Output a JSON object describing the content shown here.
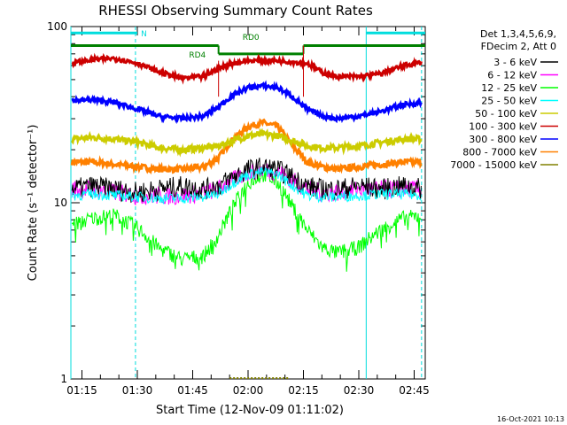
{
  "chart_data": {
    "type": "line",
    "title": "RHESSI Observing Summary Count Rates",
    "xlabel": "Start Time (12-Nov-09 01:11:02)",
    "ylabel": "Count Rate (s⁻¹ detector⁻¹)",
    "yscale": "log",
    "ylim": [
      1,
      100
    ],
    "xlim_minutes": [
      72,
      168
    ],
    "y_ticks": [
      "1",
      "10",
      "100"
    ],
    "x_ticks": [
      {
        "label": "01:15",
        "minute": 75
      },
      {
        "label": "01:30",
        "minute": 90
      },
      {
        "label": "01:45",
        "minute": 105
      },
      {
        "label": "02:00",
        "minute": 120
      },
      {
        "label": "02:15",
        "minute": 135
      },
      {
        "label": "02:30",
        "minute": 150
      },
      {
        "label": "02:45",
        "minute": 165
      }
    ],
    "legend_header": [
      "Det 1,3,4,5,6,9,",
      "FDecim 2, Att 0"
    ],
    "legend_position": "right",
    "series": [
      {
        "name": "3 - 6 keV",
        "color": "#000000",
        "x": [
          72,
          78,
          84,
          90,
          96,
          102,
          108,
          112,
          116,
          120,
          124,
          128,
          132,
          136,
          140,
          144,
          150,
          156,
          162,
          168
        ],
        "y": [
          12,
          12.5,
          12,
          11.5,
          12,
          12.5,
          12,
          12.5,
          14,
          15.5,
          16,
          15.5,
          14,
          12.5,
          12,
          12,
          12.5,
          12,
          12.5,
          12
        ]
      },
      {
        "name": "6 - 12 keV",
        "color": "#ff00ff",
        "x": [
          72,
          78,
          84,
          90,
          96,
          102,
          108,
          112,
          116,
          120,
          124,
          128,
          132,
          136,
          140,
          144,
          150,
          156,
          162,
          168
        ],
        "y": [
          12,
          12,
          11.5,
          11,
          11,
          11,
          11.5,
          12,
          13.5,
          15,
          15.5,
          15,
          13.5,
          12,
          11.5,
          11.5,
          12,
          12,
          12,
          12
        ]
      },
      {
        "name": "12 - 25 keV",
        "color": "#00ff00",
        "x": [
          72,
          78,
          84,
          90,
          96,
          102,
          108,
          112,
          116,
          120,
          124,
          128,
          132,
          136,
          140,
          144,
          150,
          156,
          162,
          168
        ],
        "y": [
          7.5,
          8.2,
          8.5,
          7.2,
          5.5,
          4.8,
          5,
          6.5,
          9.5,
          13,
          14.5,
          13,
          9.5,
          7,
          5.6,
          5.2,
          5.6,
          7,
          8.2,
          8.5
        ]
      },
      {
        "name": "25 - 50 keV",
        "color": "#00ffff",
        "x": [
          72,
          78,
          84,
          90,
          96,
          102,
          108,
          112,
          116,
          120,
          124,
          128,
          132,
          136,
          140,
          144,
          150,
          156,
          162,
          168
        ],
        "y": [
          11,
          11.2,
          11,
          10.8,
          10.6,
          10.6,
          10.8,
          11.2,
          13,
          14.5,
          15,
          14.5,
          12.5,
          11,
          10.8,
          10.8,
          11,
          11.2,
          11.2,
          11
        ]
      },
      {
        "name": "50 - 100 keV",
        "color": "#cccc00",
        "x": [
          72,
          78,
          84,
          90,
          96,
          102,
          108,
          112,
          116,
          120,
          124,
          128,
          132,
          136,
          140,
          144,
          150,
          156,
          162,
          168
        ],
        "y": [
          23,
          23.5,
          23,
          22,
          20.5,
          20,
          20.5,
          21,
          22.5,
          24,
          24.5,
          24,
          22.5,
          21,
          20.5,
          20.5,
          21,
          22,
          23,
          23
        ]
      },
      {
        "name": "100 - 300 keV",
        "color": "#cc0000",
        "x": [
          72,
          78,
          84,
          90,
          96,
          102,
          108,
          112,
          116,
          120,
          124,
          128,
          132,
          136,
          140,
          144,
          150,
          156,
          162,
          168
        ],
        "y": [
          62,
          65,
          66,
          62,
          55,
          51,
          52,
          58,
          62,
          64,
          64,
          64,
          63,
          62,
          55,
          52,
          52,
          54,
          60,
          63
        ]
      },
      {
        "name": "300 - 800 keV",
        "color": "#0000ff",
        "x": [
          72,
          78,
          84,
          90,
          96,
          102,
          108,
          112,
          116,
          120,
          124,
          128,
          132,
          136,
          140,
          144,
          150,
          156,
          162,
          168
        ],
        "y": [
          38,
          38.5,
          37,
          34,
          31,
          30,
          31,
          35,
          41,
          45,
          46,
          45,
          40,
          34,
          31,
          30,
          31,
          33,
          36,
          37
        ]
      },
      {
        "name": "800 - 7000 keV",
        "color": "#ff8000",
        "x": [
          72,
          78,
          84,
          90,
          96,
          102,
          108,
          112,
          116,
          120,
          124,
          128,
          132,
          136,
          140,
          144,
          150,
          156,
          162,
          168
        ],
        "y": [
          17,
          17,
          16.5,
          16,
          15.5,
          15.5,
          16,
          18,
          23,
          27,
          28.5,
          27,
          21,
          17,
          16,
          15.5,
          16,
          16.5,
          17,
          17
        ]
      },
      {
        "name": "7000 - 15000 keV",
        "color": "#808000",
        "x": [
          72,
          168
        ],
        "y": [
          1,
          1
        ]
      }
    ],
    "annotations": [
      {
        "text": "N",
        "color": "#00dddd"
      },
      {
        "text": "RD4",
        "color": "#008000"
      },
      {
        "text": "RD0",
        "color": "#008000"
      }
    ],
    "flag_bars": [
      {
        "name": "N",
        "color": "#00dddd",
        "level": 92,
        "segments": [
          [
            72,
            90
          ],
          [
            152,
            168
          ]
        ]
      },
      {
        "name": "RD4",
        "color": "#008000",
        "level": 78,
        "segments": [
          [
            72,
            112
          ]
        ]
      },
      {
        "name": "RD0",
        "color": "#008000",
        "level": 70,
        "segments": [
          [
            112,
            135
          ]
        ]
      },
      {
        "name": "decim",
        "color": "#008000",
        "level": 78,
        "segments": [
          [
            135,
            168
          ]
        ]
      }
    ],
    "event_lines": [
      {
        "minute": 72,
        "color": "#00dddd",
        "style": "solid"
      },
      {
        "minute": 89.5,
        "color": "#00dddd",
        "style": "dashed"
      },
      {
        "minute": 152,
        "color": "#00dddd",
        "style": "solid"
      },
      {
        "minute": 167,
        "color": "#00dddd",
        "style": "dashed"
      }
    ],
    "timestamp": "16-Oct-2021 10:13"
  }
}
